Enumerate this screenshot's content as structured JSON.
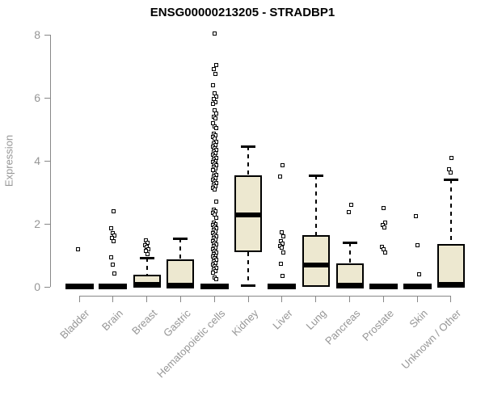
{
  "chart_data": {
    "type": "boxplot",
    "title": "ENSG00000213205 - STRADBP1",
    "ylabel": "Expression",
    "ylim": [
      0,
      8
    ],
    "yticks": [
      0,
      2,
      4,
      6,
      8
    ],
    "grid": false,
    "legend": "none",
    "categories": [
      "Bladder",
      "Brain",
      "Breast",
      "Gastric",
      "Hematopoietic cells",
      "Kidney",
      "Liver",
      "Lung",
      "Pancreas",
      "Prostate",
      "Skin",
      "Unknown / Other"
    ],
    "series": [
      {
        "label": "Bladder",
        "low": 0,
        "q1": 0,
        "median": 0,
        "q3": 0,
        "high": 0,
        "outliers": [
          1.2
        ]
      },
      {
        "label": "Brain",
        "low": 0,
        "q1": 0,
        "median": 0,
        "q3": 0,
        "high": 0,
        "outliers": [
          2.4,
          1.85,
          1.7,
          1.62,
          1.54,
          1.45,
          0.94,
          0.71,
          0.43
        ]
      },
      {
        "label": "Breast",
        "low": 0,
        "q1": 0,
        "median": 0.04,
        "q3": 0.38,
        "high": 0.93,
        "outliers": [
          1.48,
          1.4,
          1.33,
          1.27,
          1.2,
          1.13,
          1.05
        ]
      },
      {
        "label": "Gastric",
        "low": 0,
        "q1": 0,
        "median": 0.03,
        "q3": 0.87,
        "high": 1.55,
        "outliers": []
      },
      {
        "label": "Hematopoietic cells",
        "low": 0,
        "q1": 0,
        "median": 0,
        "q3": 0,
        "high": 0,
        "outliers": [
          8.05,
          7.05,
          6.9,
          6.75,
          6.4,
          6.15,
          6.05,
          5.95,
          5.85,
          5.8,
          5.6,
          5.5,
          5.4,
          5.35,
          5.2,
          5.1,
          5.05,
          4.85,
          4.8,
          4.75,
          4.7,
          4.6,
          4.55,
          4.5,
          4.45,
          4.4,
          4.35,
          4.3,
          4.25,
          4.2,
          4.15,
          4.1,
          4.05,
          4.0,
          3.95,
          3.9,
          3.85,
          3.8,
          3.75,
          3.7,
          3.6,
          3.55,
          3.5,
          3.45,
          3.4,
          3.35,
          3.3,
          3.25,
          3.2,
          3.15,
          3.1,
          2.7,
          2.45,
          2.4,
          2.35,
          2.3,
          2.2,
          2.05,
          2.0,
          1.95,
          1.9,
          1.85,
          1.8,
          1.75,
          1.7,
          1.65,
          1.6,
          1.55,
          1.5,
          1.45,
          1.4,
          1.35,
          1.3,
          1.25,
          1.2,
          1.15,
          1.1,
          1.05,
          1.0,
          0.95,
          0.9,
          0.85,
          0.8,
          0.75,
          0.7,
          0.65,
          0.6,
          0.55,
          0.5,
          0.45,
          0.3,
          0.25
        ]
      },
      {
        "label": "Kidney",
        "low": 0.05,
        "q1": 1.1,
        "median": 2.27,
        "q3": 3.55,
        "high": 4.47,
        "outliers": []
      },
      {
        "label": "Liver",
        "low": 0,
        "q1": 0,
        "median": 0,
        "q3": 0,
        "high": 0,
        "outliers": [
          3.85,
          3.5,
          1.72,
          1.6,
          1.45,
          1.38,
          1.3,
          1.24,
          1.08,
          0.74,
          0.35
        ]
      },
      {
        "label": "Lung",
        "low": 0,
        "q1": 0,
        "median": 0.68,
        "q3": 1.65,
        "high": 3.55,
        "outliers": []
      },
      {
        "label": "Pancreas",
        "low": 0,
        "q1": 0,
        "median": 0.03,
        "q3": 0.75,
        "high": 1.42,
        "outliers": [
          2.6,
          2.37
        ]
      },
      {
        "label": "Prostate",
        "low": 0,
        "q1": 0,
        "median": 0,
        "q3": 0,
        "high": 0,
        "outliers": [
          2.5,
          2.05,
          1.97,
          1.88,
          1.28,
          1.18,
          1.08
        ]
      },
      {
        "label": "Skin",
        "low": 0,
        "q1": 0,
        "median": 0,
        "q3": 0,
        "high": 0,
        "outliers": [
          2.24,
          1.33,
          0.41
        ]
      },
      {
        "label": "Unknown / Other",
        "low": 0,
        "q1": 0,
        "median": 0.05,
        "q3": 1.36,
        "high": 3.42,
        "outliers": [
          4.1,
          3.72,
          3.62
        ]
      }
    ],
    "colors": {
      "box_fill": "#EDE8D0",
      "box_stroke": "#000000",
      "axis": "#888888",
      "label": "#969696",
      "title": "#000000",
      "background": "#FFFFFF",
      "outlier_fill": "#FFFFFF"
    }
  }
}
